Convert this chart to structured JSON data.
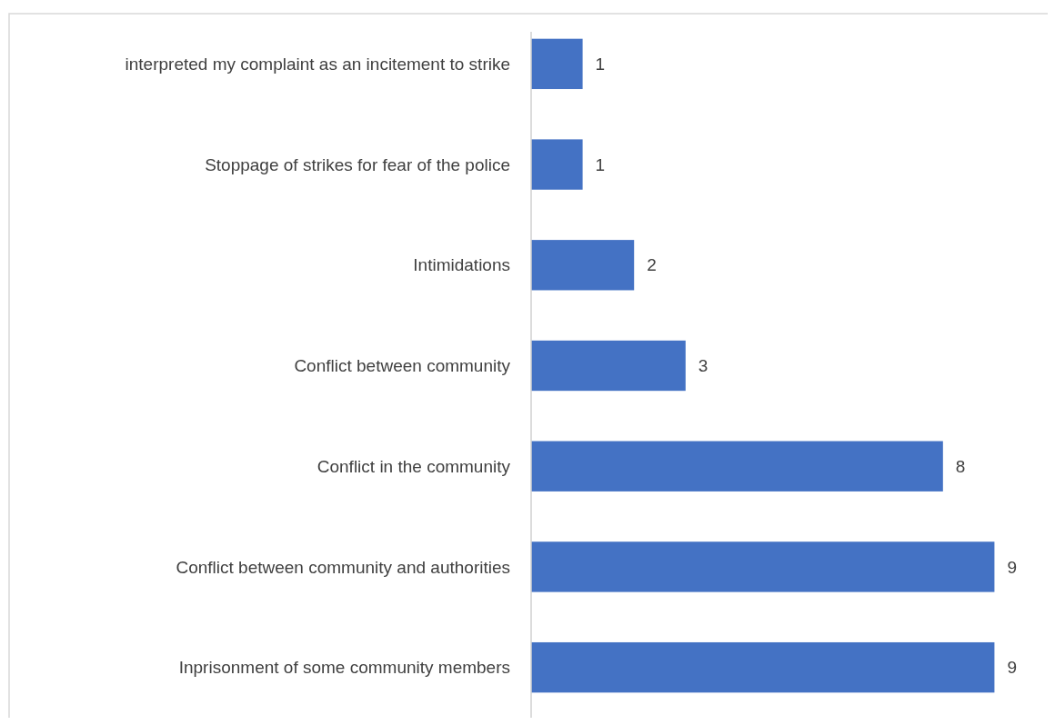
{
  "chart_data": {
    "type": "bar",
    "orientation": "horizontal",
    "categories": [
      "interpreted my complaint as an incitement to strike",
      "Stoppage of strikes for fear of the police",
      "Intimidations",
      "Conflict between community",
      "Conflict in the community",
      "Conflict between community and authorities",
      "Inprisonment of some community members"
    ],
    "values": [
      1,
      1,
      2,
      3,
      8,
      9,
      9
    ],
    "color": "#4472c4",
    "data_labels": true
  }
}
